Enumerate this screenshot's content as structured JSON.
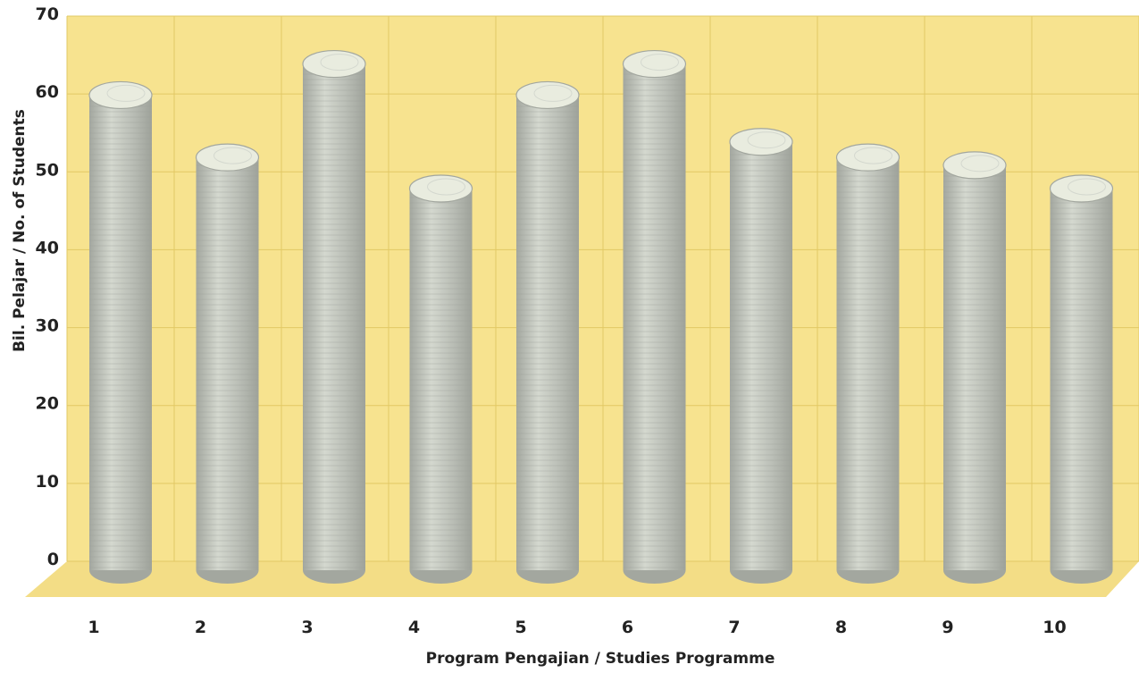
{
  "chart_data": {
    "type": "bar",
    "style": "3d-cylinder",
    "title": "",
    "xlabel": "Program Pengajian / Studies Programme",
    "ylabel": "Bil. Pelajar / No. of Students",
    "categories": [
      "1",
      "2",
      "3",
      "4",
      "5",
      "6",
      "7",
      "8",
      "9",
      "10"
    ],
    "values": [
      61,
      53,
      65,
      49,
      61,
      65,
      55,
      53,
      52,
      49
    ],
    "ylim": [
      0,
      70
    ],
    "yticks": [
      "0",
      "10",
      "20",
      "30",
      "40",
      "50",
      "60",
      "70"
    ],
    "grid": true,
    "legend": "none",
    "colors": {
      "wall": "#f7e38f",
      "floor": "#f3dd86",
      "grid": "#e2c864",
      "bar_body": "#b9bdb5",
      "bar_light": "#d4d8cf",
      "bar_dark": "#a3a79f",
      "bar_top": "#e9ecdf"
    }
  }
}
